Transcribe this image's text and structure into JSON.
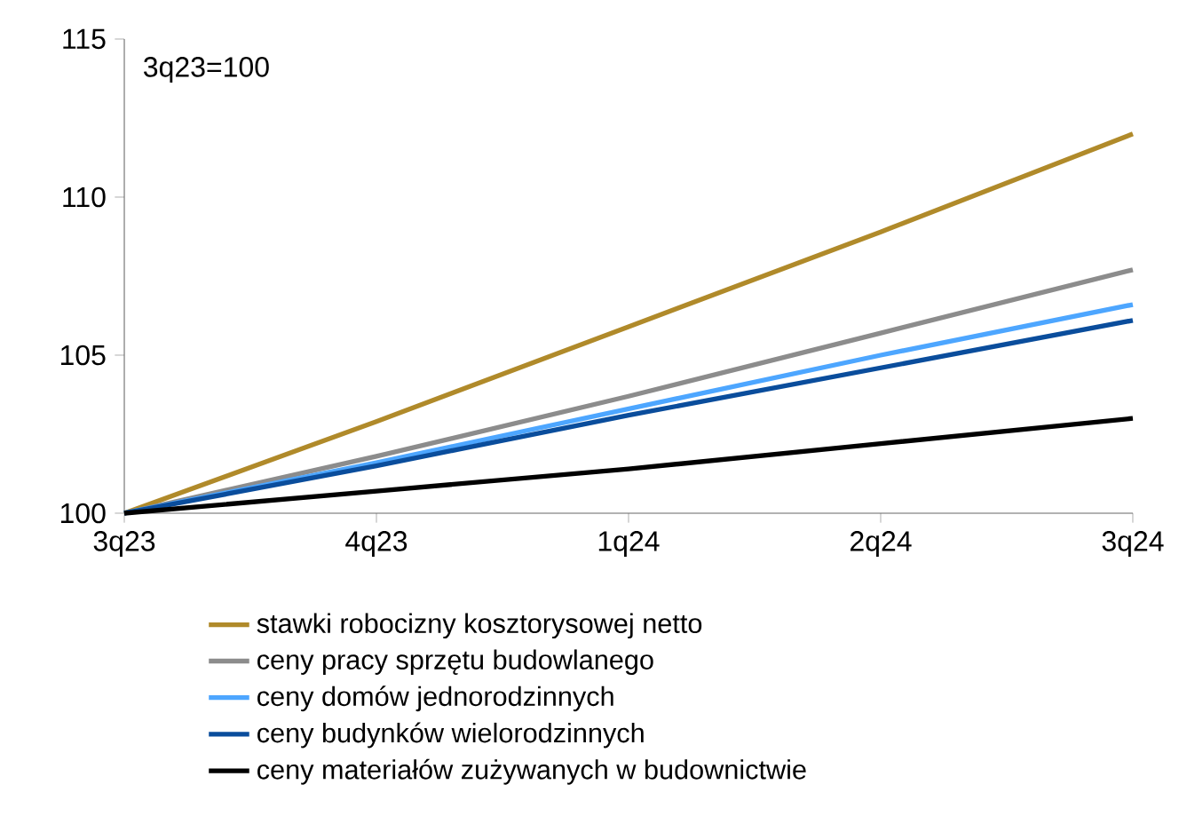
{
  "chart_data": {
    "type": "line",
    "categories": [
      "3q23",
      "4q23",
      "1q24",
      "2q24",
      "3q24"
    ],
    "series": [
      {
        "name": "stawki robocizny kosztorysowej netto",
        "color": "#b08a2a",
        "values": [
          100,
          102.9,
          105.9,
          108.9,
          112.0
        ]
      },
      {
        "name": "ceny pracy sprzętu budowlanego",
        "color": "#8c8c8c",
        "values": [
          100,
          101.8,
          103.7,
          105.7,
          107.7
        ]
      },
      {
        "name": "ceny domów jednorodzinnych",
        "color": "#4da6ff",
        "values": [
          100,
          101.6,
          103.3,
          105.0,
          106.6
        ]
      },
      {
        "name": "ceny budynków wielorodzinnych",
        "color": "#0a4d9c",
        "values": [
          100,
          101.5,
          103.1,
          104.6,
          106.1
        ]
      },
      {
        "name": "ceny materiałów zużywanych w budownictwie",
        "color": "#000000",
        "values": [
          100,
          100.7,
          101.4,
          102.2,
          103.0
        ]
      }
    ],
    "ylim": [
      100,
      115
    ],
    "yticks": [
      100,
      105,
      110,
      115
    ],
    "annotations": [
      "3q23=100"
    ],
    "legend": "bottom",
    "marker": "none",
    "line_style": "solid",
    "grid": false
  }
}
